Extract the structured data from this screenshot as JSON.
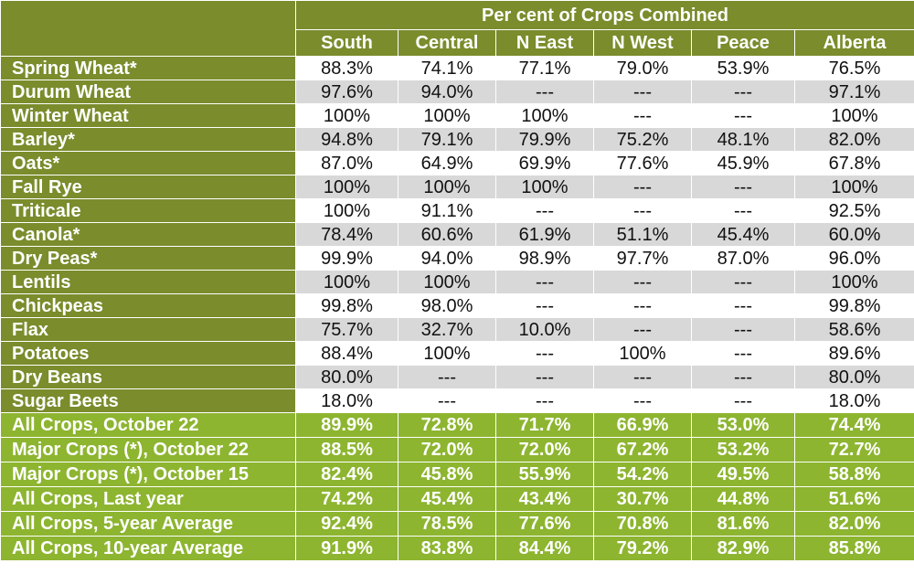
{
  "header": {
    "group_title": "Per cent of Crops Combined",
    "columns": [
      "South",
      "Central",
      "N East",
      "N West",
      "Peace",
      "Alberta"
    ]
  },
  "crops": [
    {
      "name": "Spring Wheat*",
      "values": [
        "88.3%",
        "74.1%",
        "77.1%",
        "79.0%",
        "53.9%",
        "76.5%"
      ]
    },
    {
      "name": "Durum Wheat",
      "values": [
        "97.6%",
        "94.0%",
        "---",
        "---",
        "---",
        "97.1%"
      ]
    },
    {
      "name": "Winter Wheat",
      "values": [
        "100%",
        "100%",
        "100%",
        "---",
        "---",
        "100%"
      ]
    },
    {
      "name": "Barley*",
      "values": [
        "94.8%",
        "79.1%",
        "79.9%",
        "75.2%",
        "48.1%",
        "82.0%"
      ]
    },
    {
      "name": "Oats*",
      "values": [
        "87.0%",
        "64.9%",
        "69.9%",
        "77.6%",
        "45.9%",
        "67.8%"
      ]
    },
    {
      "name": "Fall Rye",
      "values": [
        "100%",
        "100%",
        "100%",
        "---",
        "---",
        "100%"
      ]
    },
    {
      "name": "Triticale",
      "values": [
        "100%",
        "91.1%",
        "---",
        "---",
        "---",
        "92.5%"
      ]
    },
    {
      "name": "Canola*",
      "values": [
        "78.4%",
        "60.6%",
        "61.9%",
        "51.1%",
        "45.4%",
        "60.0%"
      ]
    },
    {
      "name": "Dry Peas*",
      "values": [
        "99.9%",
        "94.0%",
        "98.9%",
        "97.7%",
        "87.0%",
        "96.0%"
      ]
    },
    {
      "name": "Lentils",
      "values": [
        "100%",
        "100%",
        "---",
        "---",
        "---",
        "100%"
      ]
    },
    {
      "name": "Chickpeas",
      "values": [
        "99.8%",
        "98.0%",
        "---",
        "---",
        "---",
        "99.8%"
      ]
    },
    {
      "name": "Flax",
      "values": [
        "75.7%",
        "32.7%",
        "10.0%",
        "---",
        "---",
        "58.6%"
      ]
    },
    {
      "name": "Potatoes",
      "values": [
        "88.4%",
        "100%",
        "---",
        "100%",
        "---",
        "89.6%"
      ]
    },
    {
      "name": "Dry Beans",
      "values": [
        "80.0%",
        "---",
        "---",
        "---",
        "---",
        "80.0%"
      ]
    },
    {
      "name": "Sugar Beets",
      "values": [
        "18.0%",
        "---",
        "---",
        "---",
        "---",
        "18.0%"
      ]
    }
  ],
  "summary": [
    {
      "name": "All Crops, October 22",
      "values": [
        "89.9%",
        "72.8%",
        "71.7%",
        "66.9%",
        "53.0%",
        "74.4%"
      ]
    },
    {
      "name": "Major Crops (*), October 22",
      "values": [
        "88.5%",
        "72.0%",
        "72.0%",
        "67.2%",
        "53.2%",
        "72.7%"
      ]
    },
    {
      "name": "Major Crops (*), October 15",
      "values": [
        "82.4%",
        "45.8%",
        "55.9%",
        "54.2%",
        "49.5%",
        "58.8%"
      ]
    },
    {
      "name": "All Crops, Last year",
      "values": [
        "74.2%",
        "45.4%",
        "43.4%",
        "30.7%",
        "44.8%",
        "51.6%"
      ]
    },
    {
      "name": "All Crops, 5-year Average",
      "values": [
        "92.4%",
        "78.5%",
        "77.6%",
        "70.8%",
        "81.6%",
        "82.0%"
      ]
    },
    {
      "name": "All Crops, 10-year Average",
      "values": [
        "91.9%",
        "83.8%",
        "84.4%",
        "79.2%",
        "82.9%",
        "85.8%"
      ]
    }
  ],
  "colors": {
    "header_olive": "#7a8c2c",
    "summary_green": "#8db530",
    "alt_row_gray": "#d8d8d8"
  }
}
